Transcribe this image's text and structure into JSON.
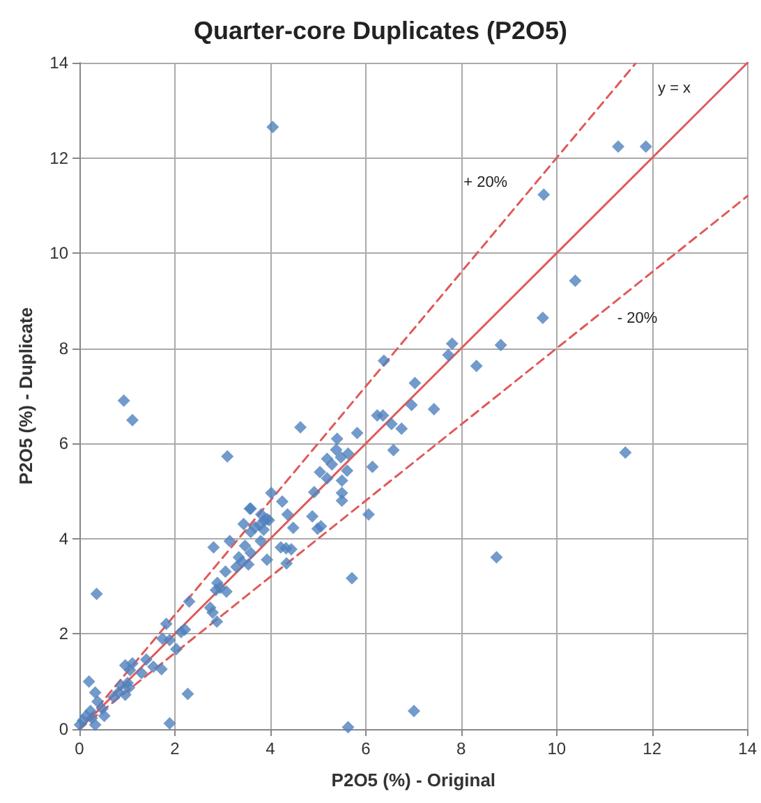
{
  "chart_data": {
    "type": "scatter",
    "title": "Quarter-core Duplicates (P2O5)",
    "xlabel": "P2O5 (%) - Original",
    "ylabel": "P2O5 (%) - Duplicate",
    "xlim": [
      0,
      14
    ],
    "ylim": [
      0,
      14
    ],
    "xticks": [
      0,
      2,
      4,
      6,
      8,
      10,
      12,
      14
    ],
    "yticks": [
      0,
      2,
      4,
      6,
      8,
      10,
      12,
      14
    ],
    "grid": true,
    "legend": false,
    "series": [
      {
        "color": "#4f81bd",
        "marker": "diamond",
        "x": [
          4.05,
          11.29,
          11.87,
          9.73,
          10.39,
          9.71,
          8.83,
          8.32,
          7.81,
          7.73,
          6.38,
          7.03,
          6.96,
          7.43,
          6.24,
          6.36,
          11.44,
          8.74,
          7.01,
          5.63,
          5.71,
          6.06,
          6.14,
          6.58,
          6.75,
          6.54,
          5.82,
          4.63,
          5.4,
          5.63,
          5.38,
          5.19,
          5.29,
          5.48,
          5.61,
          5.04,
          5.19,
          5.5,
          5.5,
          5.5,
          4.92,
          4.25,
          4.36,
          4.88,
          4.48,
          4.99,
          5.06,
          4.22,
          4.33,
          4.44,
          4.34,
          4.02,
          3.59,
          3.88,
          3.97,
          3.78,
          3.68,
          3.86,
          3.59,
          3.8,
          3.59,
          3.93,
          0.93,
          1.11,
          3.1,
          0.36,
          2.27,
          1.89,
          3.57,
          3.81,
          3.93,
          3.44,
          3.15,
          2.81,
          3.47,
          3.34,
          3.41,
          3.54,
          3.29,
          3.06,
          2.89,
          2.95,
          2.86,
          3.08,
          2.3,
          2.74,
          2.79,
          2.88,
          1.82,
          2.13,
          2.21,
          1.74,
          1.89,
          2.03,
          1.72,
          1.4,
          1.55,
          1.3,
          1.11,
          0.96,
          1.06,
          0.87,
          1.01,
          1.04,
          0.82,
          0.96,
          0.72,
          0.2,
          0.33,
          0.38,
          0.48,
          0.23,
          0.14,
          0.07,
          0.26,
          0.01,
          0.52,
          0.33
        ],
        "values": [
          12.65,
          12.24,
          12.24,
          11.23,
          9.42,
          8.64,
          8.07,
          7.63,
          8.1,
          7.86,
          7.74,
          7.27,
          6.81,
          6.72,
          6.59,
          6.59,
          5.81,
          3.61,
          0.38,
          0.04,
          3.17,
          4.51,
          5.51,
          5.86,
          6.31,
          6.41,
          6.22,
          6.34,
          6.1,
          5.79,
          5.87,
          5.68,
          5.56,
          5.71,
          5.43,
          5.4,
          5.27,
          5.22,
          4.96,
          4.8,
          4.98,
          4.78,
          4.51,
          4.47,
          4.23,
          4.21,
          4.26,
          3.82,
          3.8,
          3.78,
          3.48,
          4.96,
          4.63,
          4.39,
          4.39,
          4.29,
          4.24,
          4.19,
          4.14,
          3.95,
          3.7,
          3.56,
          6.9,
          6.49,
          5.73,
          2.84,
          0.74,
          0.12,
          4.63,
          4.51,
          4.41,
          4.31,
          3.95,
          3.82,
          3.85,
          3.61,
          3.51,
          3.46,
          3.41,
          3.31,
          3.07,
          2.97,
          2.92,
          2.89,
          2.68,
          2.55,
          2.45,
          2.26,
          2.21,
          2.04,
          2.09,
          1.9,
          1.87,
          1.68,
          1.26,
          1.46,
          1.31,
          1.18,
          1.38,
          1.34,
          1.24,
          0.92,
          0.97,
          0.87,
          0.77,
          0.72,
          0.67,
          1.0,
          0.77,
          0.58,
          0.43,
          0.38,
          0.28,
          0.18,
          0.23,
          0.09,
          0.28,
          0.09
        ]
      },
      {
        "type": "line",
        "name": "y = x",
        "color": "#e05a5a",
        "line_style": "solid",
        "marker": "none",
        "x": [
          0,
          14
        ],
        "values": [
          0,
          14
        ]
      },
      {
        "type": "line",
        "name": "+ 20%",
        "color": "#e05a5a",
        "line_style": "dashed",
        "marker": "none",
        "x": [
          0,
          11.65
        ],
        "values": [
          0,
          13.98
        ]
      },
      {
        "type": "line",
        "name": "- 20%",
        "color": "#e05a5a",
        "line_style": "dashed",
        "marker": "none",
        "x": [
          0,
          14
        ],
        "values": [
          0,
          11.2
        ]
      }
    ]
  }
}
